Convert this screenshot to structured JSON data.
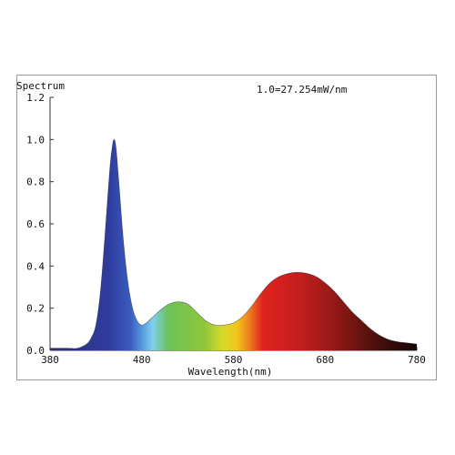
{
  "chart_data": {
    "type": "area",
    "title": "Spectrum",
    "annotation": "1.0=27.254mW/nm",
    "xlabel": "Wavelength(nm)",
    "ylabel": "Spectrum",
    "xlim": [
      380,
      780
    ],
    "ylim": [
      0,
      1.2
    ],
    "x_ticks": [
      "380",
      "480",
      "580",
      "680",
      "780"
    ],
    "y_ticks": [
      "0.0",
      "0.2",
      "0.4",
      "0.6",
      "0.8",
      "1.0",
      "1.2"
    ],
    "fill": "visible-spectrum gradient under curve",
    "series": [
      {
        "x": [
          380,
          390,
          400,
          410,
          420,
          425,
          430,
          435,
          440,
          445,
          448,
          450,
          452,
          455,
          460,
          465,
          470,
          475,
          480,
          485,
          490,
          495,
          500,
          510,
          520,
          530,
          540,
          550,
          560,
          570,
          580,
          590,
          600,
          610,
          620,
          630,
          640,
          650,
          660,
          670,
          680,
          690,
          700,
          710,
          720,
          730,
          740,
          750,
          760,
          770,
          780
        ],
        "y": [
          0.01,
          0.01,
          0.01,
          0.01,
          0.03,
          0.06,
          0.12,
          0.28,
          0.55,
          0.85,
          0.97,
          1.0,
          0.96,
          0.8,
          0.52,
          0.32,
          0.2,
          0.14,
          0.12,
          0.13,
          0.15,
          0.17,
          0.19,
          0.22,
          0.23,
          0.22,
          0.18,
          0.14,
          0.12,
          0.12,
          0.13,
          0.16,
          0.21,
          0.27,
          0.32,
          0.35,
          0.365,
          0.37,
          0.365,
          0.35,
          0.32,
          0.28,
          0.23,
          0.18,
          0.14,
          0.1,
          0.07,
          0.05,
          0.04,
          0.035,
          0.03
        ]
      }
    ]
  }
}
